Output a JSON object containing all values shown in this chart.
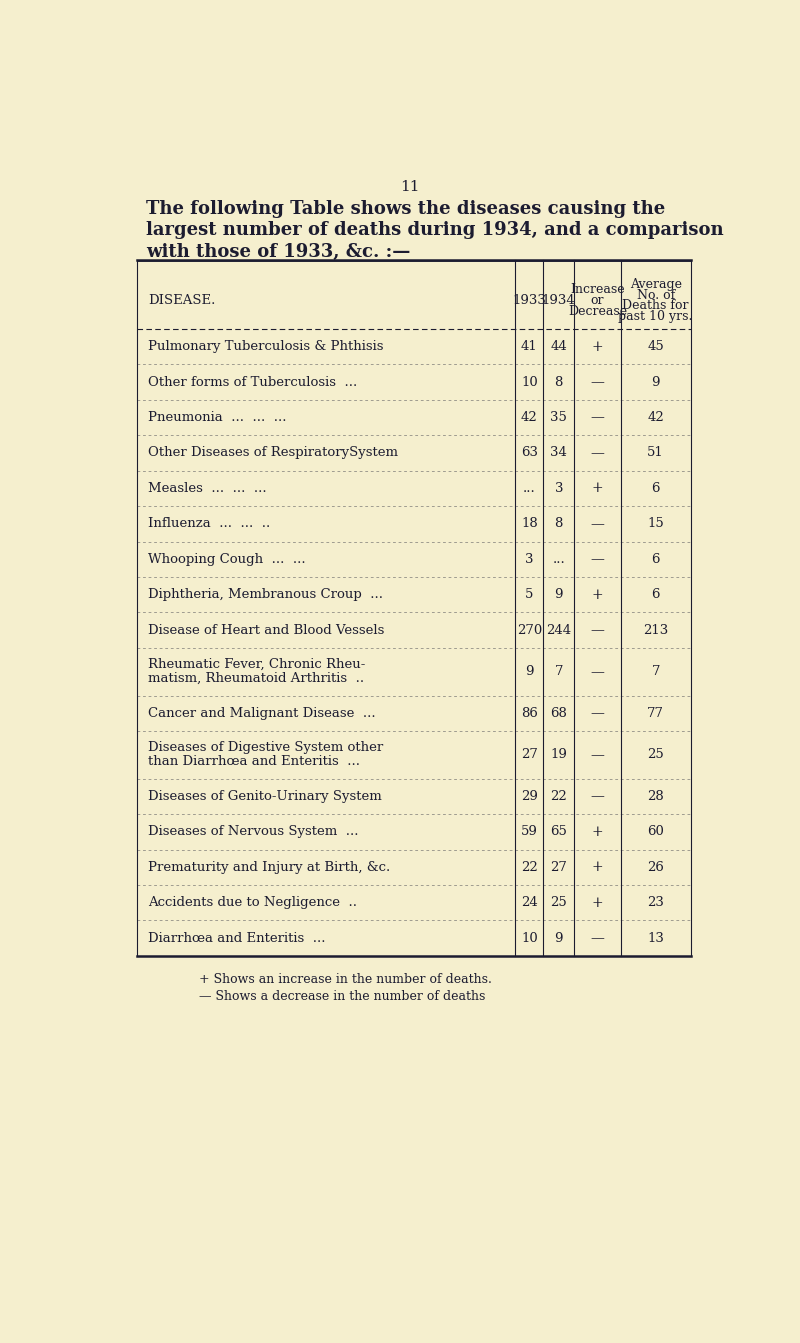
{
  "page_number": "11",
  "title_line1": "The following Table shows the diseases causing the",
  "title_line2": "largest number of deaths during 1934, and a comparison",
  "title_line3": "with those of 1933, &c. :—",
  "bg_color": "#f5efce",
  "text_color": "#1c1c30",
  "header_col1": "DISEASE.",
  "header_col2": "1933",
  "header_col3": "1934",
  "header_col4": [
    "Increase",
    "or",
    "Decrease"
  ],
  "header_col5": [
    "Average",
    "No. of",
    "Deaths for",
    "past 10 yrs."
  ],
  "rows": [
    [
      "Pulmonary Tuberculosis & Phthisis",
      "41",
      "44",
      "+",
      "45"
    ],
    [
      "Other forms of Tuberculosis  ...",
      "10",
      "8",
      "—",
      "9"
    ],
    [
      "Pneumonia  ...  ...  ...",
      "42",
      "35",
      "—",
      "42"
    ],
    [
      "Other Diseases of RespiratorySystem",
      "63",
      "34",
      "—",
      "51"
    ],
    [
      "Measles  ...  ...  ...",
      "...",
      "3",
      "+",
      "6"
    ],
    [
      "Influenza  ...  ...  ..",
      "18",
      "8",
      "—",
      "15"
    ],
    [
      "Whooping Cough  ...  ...",
      "3",
      "...",
      "—",
      "6"
    ],
    [
      "Diphtheria, Membranous Croup  ...",
      "5",
      "9",
      "+",
      "6"
    ],
    [
      "Disease of Heart and Blood Vessels",
      "270",
      "244",
      "—",
      "213"
    ],
    [
      "Rheumatic Fever, Chronic Rheu-\nmatism, Rheumatoid Arthritis  ..",
      "9",
      "7",
      "—",
      "7"
    ],
    [
      "Cancer and Malignant Disease  ...",
      "86",
      "68",
      "—",
      "77"
    ],
    [
      "Diseases of Digestive System other\nthan Diarrhœa and Enteritis  ...",
      "27",
      "19",
      "—",
      "25"
    ],
    [
      "Diseases of Genito-Urinary System",
      "29",
      "22",
      "—",
      "28"
    ],
    [
      "Diseases of Nervous System  ...",
      "59",
      "65",
      "+",
      "60"
    ],
    [
      "Prematurity and Injury at Birth, &c.",
      "22",
      "27",
      "+",
      "26"
    ],
    [
      "Accidents due to Negligence  ..",
      "24",
      "25",
      "+",
      "23"
    ],
    [
      "Diarrhœa and Enteritis  ...",
      "10",
      "9",
      "—",
      "13"
    ]
  ],
  "footnote1": "+ Shows an increase in the number of deaths.",
  "footnote2": "— Shows a decrease in the number of deaths"
}
